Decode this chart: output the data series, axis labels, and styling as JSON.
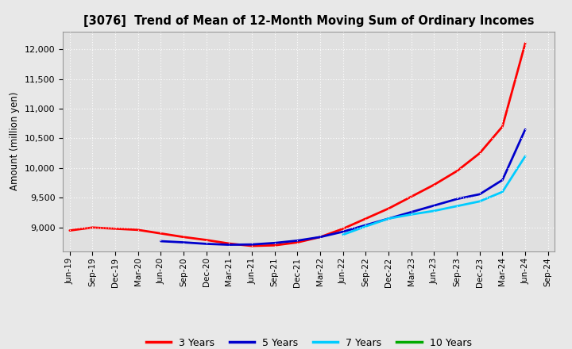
{
  "title": "[3076]  Trend of Mean of 12-Month Moving Sum of Ordinary Incomes",
  "ylabel": "Amount (million yen)",
  "background_color": "#e8e8e8",
  "plot_bg_color": "#e0e0e0",
  "grid_color": "#ffffff",
  "ylim": [
    8600,
    12300
  ],
  "yticks": [
    9000,
    9500,
    10000,
    10500,
    11000,
    11500,
    12000
  ],
  "x_labels": [
    "Jun-19",
    "Sep-19",
    "Dec-19",
    "Mar-20",
    "Jun-20",
    "Sep-20",
    "Dec-20",
    "Mar-21",
    "Jun-21",
    "Sep-21",
    "Dec-21",
    "Mar-22",
    "Jun-22",
    "Sep-22",
    "Dec-22",
    "Mar-23",
    "Jun-23",
    "Sep-23",
    "Dec-23",
    "Mar-24",
    "Jun-24",
    "Sep-24"
  ],
  "series": {
    "3 Years": {
      "color": "#ff0000",
      "linewidth": 2.0,
      "values": [
        8950,
        9000,
        8980,
        8960,
        8900,
        8840,
        8790,
        8730,
        8690,
        8700,
        8750,
        8840,
        8980,
        9150,
        9320,
        9520,
        9720,
        9950,
        10250,
        10700,
        12100,
        null
      ]
    },
    "5 Years": {
      "color": "#0000cc",
      "linewidth": 2.0,
      "values": [
        null,
        null,
        null,
        null,
        8770,
        8750,
        8725,
        8710,
        8715,
        8740,
        8780,
        8840,
        8930,
        9040,
        9150,
        9260,
        9370,
        9480,
        9560,
        9800,
        10650,
        null
      ]
    },
    "7 Years": {
      "color": "#00ccff",
      "linewidth": 2.0,
      "values": [
        null,
        null,
        null,
        null,
        null,
        null,
        null,
        null,
        null,
        null,
        null,
        null,
        8880,
        9020,
        9150,
        9220,
        9280,
        9360,
        9440,
        9600,
        10200,
        null
      ]
    },
    "10 Years": {
      "color": "#00aa00",
      "linewidth": 2.0,
      "values": [
        null,
        null,
        null,
        null,
        null,
        null,
        null,
        null,
        null,
        null,
        null,
        null,
        null,
        null,
        null,
        null,
        null,
        null,
        null,
        null,
        null,
        null
      ]
    }
  },
  "legend_labels": [
    "3 Years",
    "5 Years",
    "7 Years",
    "10 Years"
  ],
  "legend_colors": [
    "#ff0000",
    "#0000cc",
    "#00ccff",
    "#00aa00"
  ]
}
